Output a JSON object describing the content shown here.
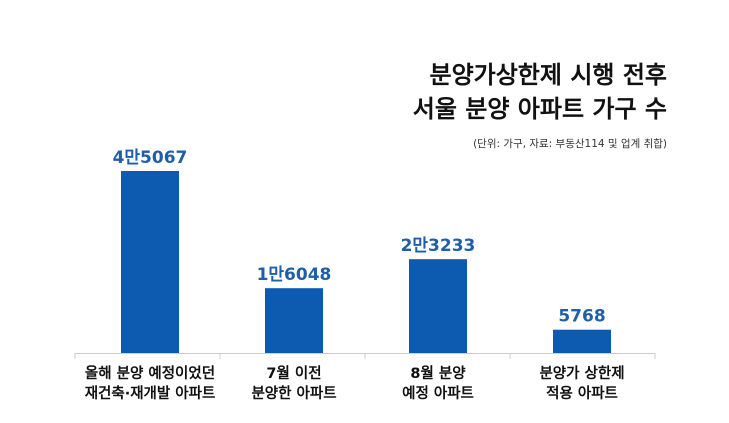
{
  "chart_data": {
    "type": "bar",
    "title_lines": [
      "분양가상한제 시행 전후",
      "서울 분양 아파트 가구 수"
    ],
    "subtitle": "(단위: 가구, 자료: 부동산114 및 업계 취합)",
    "categories": [
      [
        "올해 분양 예정이었던",
        "재건축·재개발 아파트"
      ],
      [
        "7월 이전",
        "분양한 아파트"
      ],
      [
        "8월 분양",
        "예정 아파트"
      ],
      [
        "분양가 상한제",
        "적용 아파트"
      ]
    ],
    "values": [
      45067,
      16048,
      23233,
      5768
    ],
    "value_labels": [
      "4만5067",
      "1만6048",
      "2만3233",
      "5768"
    ],
    "bar_color": "#0d5bb0",
    "label_color": "#1f5fa8",
    "grid": false,
    "legend": "none"
  }
}
